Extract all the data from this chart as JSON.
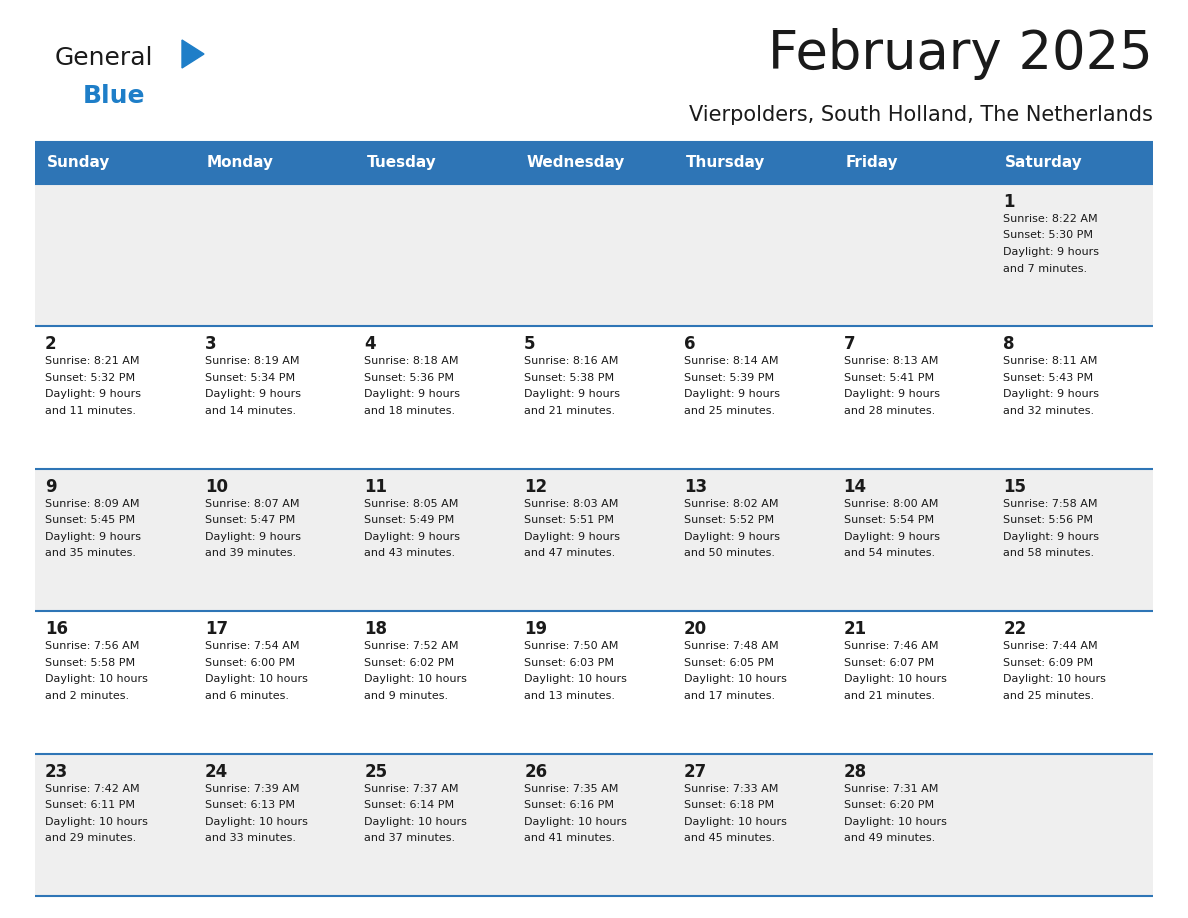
{
  "title": "February 2025",
  "subtitle": "Vierpolders, South Holland, The Netherlands",
  "header_bg": "#2E75B6",
  "header_text_color": "#FFFFFF",
  "row_bg_odd": "#EFEFEF",
  "row_bg_even": "#FFFFFF",
  "separator_color": "#2E75B6",
  "day_names": [
    "Sunday",
    "Monday",
    "Tuesday",
    "Wednesday",
    "Thursday",
    "Friday",
    "Saturday"
  ],
  "days": [
    {
      "day": 1,
      "col": 6,
      "row": 0,
      "sunrise": "8:22 AM",
      "sunset": "5:30 PM",
      "daylight": "9 hours and 7 minutes."
    },
    {
      "day": 2,
      "col": 0,
      "row": 1,
      "sunrise": "8:21 AM",
      "sunset": "5:32 PM",
      "daylight": "9 hours and 11 minutes."
    },
    {
      "day": 3,
      "col": 1,
      "row": 1,
      "sunrise": "8:19 AM",
      "sunset": "5:34 PM",
      "daylight": "9 hours and 14 minutes."
    },
    {
      "day": 4,
      "col": 2,
      "row": 1,
      "sunrise": "8:18 AM",
      "sunset": "5:36 PM",
      "daylight": "9 hours and 18 minutes."
    },
    {
      "day": 5,
      "col": 3,
      "row": 1,
      "sunrise": "8:16 AM",
      "sunset": "5:38 PM",
      "daylight": "9 hours and 21 minutes."
    },
    {
      "day": 6,
      "col": 4,
      "row": 1,
      "sunrise": "8:14 AM",
      "sunset": "5:39 PM",
      "daylight": "9 hours and 25 minutes."
    },
    {
      "day": 7,
      "col": 5,
      "row": 1,
      "sunrise": "8:13 AM",
      "sunset": "5:41 PM",
      "daylight": "9 hours and 28 minutes."
    },
    {
      "day": 8,
      "col": 6,
      "row": 1,
      "sunrise": "8:11 AM",
      "sunset": "5:43 PM",
      "daylight": "9 hours and 32 minutes."
    },
    {
      "day": 9,
      "col": 0,
      "row": 2,
      "sunrise": "8:09 AM",
      "sunset": "5:45 PM",
      "daylight": "9 hours and 35 minutes."
    },
    {
      "day": 10,
      "col": 1,
      "row": 2,
      "sunrise": "8:07 AM",
      "sunset": "5:47 PM",
      "daylight": "9 hours and 39 minutes."
    },
    {
      "day": 11,
      "col": 2,
      "row": 2,
      "sunrise": "8:05 AM",
      "sunset": "5:49 PM",
      "daylight": "9 hours and 43 minutes."
    },
    {
      "day": 12,
      "col": 3,
      "row": 2,
      "sunrise": "8:03 AM",
      "sunset": "5:51 PM",
      "daylight": "9 hours and 47 minutes."
    },
    {
      "day": 13,
      "col": 4,
      "row": 2,
      "sunrise": "8:02 AM",
      "sunset": "5:52 PM",
      "daylight": "9 hours and 50 minutes."
    },
    {
      "day": 14,
      "col": 5,
      "row": 2,
      "sunrise": "8:00 AM",
      "sunset": "5:54 PM",
      "daylight": "9 hours and 54 minutes."
    },
    {
      "day": 15,
      "col": 6,
      "row": 2,
      "sunrise": "7:58 AM",
      "sunset": "5:56 PM",
      "daylight": "9 hours and 58 minutes."
    },
    {
      "day": 16,
      "col": 0,
      "row": 3,
      "sunrise": "7:56 AM",
      "sunset": "5:58 PM",
      "daylight": "10 hours and 2 minutes."
    },
    {
      "day": 17,
      "col": 1,
      "row": 3,
      "sunrise": "7:54 AM",
      "sunset": "6:00 PM",
      "daylight": "10 hours and 6 minutes."
    },
    {
      "day": 18,
      "col": 2,
      "row": 3,
      "sunrise": "7:52 AM",
      "sunset": "6:02 PM",
      "daylight": "10 hours and 9 minutes."
    },
    {
      "day": 19,
      "col": 3,
      "row": 3,
      "sunrise": "7:50 AM",
      "sunset": "6:03 PM",
      "daylight": "10 hours and 13 minutes."
    },
    {
      "day": 20,
      "col": 4,
      "row": 3,
      "sunrise": "7:48 AM",
      "sunset": "6:05 PM",
      "daylight": "10 hours and 17 minutes."
    },
    {
      "day": 21,
      "col": 5,
      "row": 3,
      "sunrise": "7:46 AM",
      "sunset": "6:07 PM",
      "daylight": "10 hours and 21 minutes."
    },
    {
      "day": 22,
      "col": 6,
      "row": 3,
      "sunrise": "7:44 AM",
      "sunset": "6:09 PM",
      "daylight": "10 hours and 25 minutes."
    },
    {
      "day": 23,
      "col": 0,
      "row": 4,
      "sunrise": "7:42 AM",
      "sunset": "6:11 PM",
      "daylight": "10 hours and 29 minutes."
    },
    {
      "day": 24,
      "col": 1,
      "row": 4,
      "sunrise": "7:39 AM",
      "sunset": "6:13 PM",
      "daylight": "10 hours and 33 minutes."
    },
    {
      "day": 25,
      "col": 2,
      "row": 4,
      "sunrise": "7:37 AM",
      "sunset": "6:14 PM",
      "daylight": "10 hours and 37 minutes."
    },
    {
      "day": 26,
      "col": 3,
      "row": 4,
      "sunrise": "7:35 AM",
      "sunset": "6:16 PM",
      "daylight": "10 hours and 41 minutes."
    },
    {
      "day": 27,
      "col": 4,
      "row": 4,
      "sunrise": "7:33 AM",
      "sunset": "6:18 PM",
      "daylight": "10 hours and 45 minutes."
    },
    {
      "day": 28,
      "col": 5,
      "row": 4,
      "sunrise": "7:31 AM",
      "sunset": "6:20 PM",
      "daylight": "10 hours and 49 minutes."
    }
  ],
  "num_rows": 5,
  "logo_text_general": "General",
  "logo_text_blue": "Blue",
  "logo_color_general": "#1a1a1a",
  "logo_color_blue": "#1E7EC8",
  "logo_triangle_color": "#1E7EC8",
  "title_fontsize": 38,
  "subtitle_fontsize": 15,
  "header_fontsize": 11,
  "day_num_fontsize": 12,
  "cell_text_fontsize": 8
}
